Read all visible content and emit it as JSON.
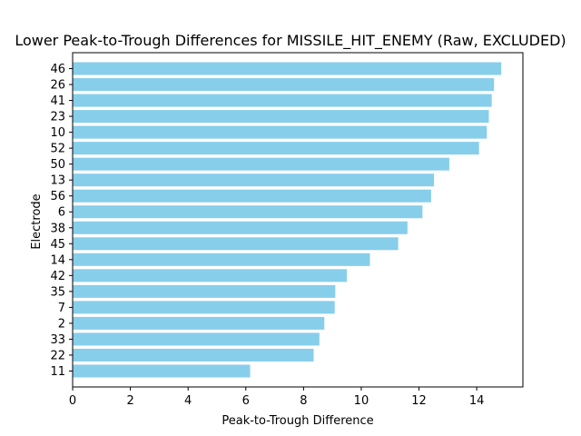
{
  "chart_data": {
    "type": "bar",
    "orientation": "horizontal",
    "title": "Lower Peak-to-Trough Differences for MISSILE_HIT_ENEMY (Raw, EXCLUDED)",
    "xlabel": "Peak-to-Trough Difference",
    "ylabel": "Electrode",
    "categories": [
      "11",
      "22",
      "33",
      "2",
      "7",
      "35",
      "42",
      "14",
      "45",
      "38",
      "6",
      "56",
      "13",
      "50",
      "52",
      "10",
      "23",
      "41",
      "26",
      "46"
    ],
    "values": [
      6.15,
      8.35,
      8.55,
      8.72,
      9.08,
      9.1,
      9.5,
      10.3,
      11.28,
      11.6,
      12.12,
      12.42,
      12.52,
      13.05,
      14.08,
      14.35,
      14.42,
      14.52,
      14.6,
      14.85
    ],
    "xlim": [
      0,
      15.6
    ],
    "xticks": [
      0,
      2,
      4,
      6,
      8,
      10,
      12,
      14
    ],
    "grid": false,
    "bar_color": "#87ceeb"
  }
}
